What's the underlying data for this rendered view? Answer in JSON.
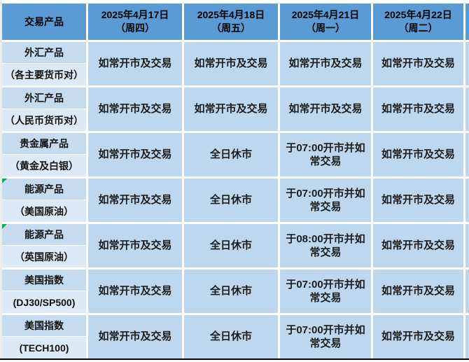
{
  "colors": {
    "header-bg": "#5b9bd5",
    "data-bg": "#bdd7ee",
    "label-bg": "#c6dbf0",
    "sublabel-bg": "#dce9f6",
    "flag-green": "#00b050",
    "border-black": "#000000",
    "gridline": "#ffffff"
  },
  "table": {
    "columns": [
      {
        "label": "交易产品"
      },
      {
        "date": "2025年4月17日",
        "weekday": "（周四）"
      },
      {
        "date": "2025年4月18日",
        "weekday": "（周五）"
      },
      {
        "date": "2025年4月21日",
        "weekday": "（周一）"
      },
      {
        "date": "2025年4月22日",
        "weekday": "（周二）"
      }
    ],
    "rows": [
      {
        "product": "外汇产品",
        "detail": "（各主要货币对）",
        "flag": false,
        "cells": [
          "如常开市及交易",
          "如常开市及交易",
          "如常开市及交易",
          "如常开市及交易"
        ]
      },
      {
        "product": "外汇产品",
        "detail": "（人民币货币对）",
        "flag": false,
        "cells": [
          "如常开市及交易",
          "如常开市及交易",
          "如常开市及交易",
          "如常开市及交易"
        ]
      },
      {
        "product": "贵金属产品",
        "detail": "（黄金及白银）",
        "flag": false,
        "cells": [
          "如常开市及交易",
          "全日休市",
          "于07:00开市并如常交易",
          "如常开市及交易"
        ]
      },
      {
        "product": "能源产品",
        "detail": "（美国原油）",
        "flag": true,
        "cells": [
          "如常开市及交易",
          "全日休市",
          "于07:00开市并如常交易",
          "如常开市及交易"
        ]
      },
      {
        "product": "能源产品",
        "detail": "（英国原油）",
        "flag": true,
        "cells": [
          "如常开市及交易",
          "全日休市",
          "于08:00开市并如常交易",
          "如常开市及交易"
        ]
      },
      {
        "product": "美国指数",
        "detail": "(DJ30/SP500)",
        "flag": false,
        "cells": [
          "如常开市及交易",
          "全日休市",
          "于07:00开市并如常交易",
          "如常开市及交易"
        ]
      },
      {
        "product": "美国指数",
        "detail": "(TECH100)",
        "flag": false,
        "cells": [
          "如常开市及交易",
          "全日休市",
          "于07:00开市并如常交易",
          "如常开市及交易"
        ]
      }
    ]
  }
}
